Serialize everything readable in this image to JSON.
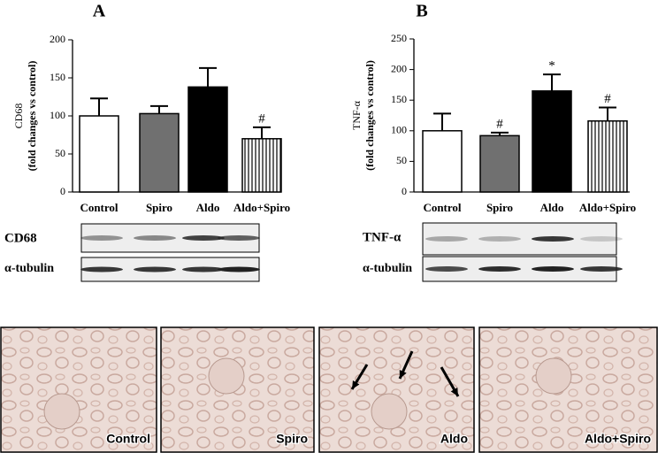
{
  "chart_data": [
    {
      "type": "bar",
      "panel": "A",
      "ylabel": [
        "CD68",
        "(fold changes vs control)"
      ],
      "categories": [
        "Control",
        "Spiro",
        "Aldo",
        "Aldo+Spiro"
      ],
      "values": [
        100,
        103,
        138,
        70
      ],
      "errors": [
        23,
        10,
        25,
        15
      ],
      "colors": [
        "#ffffff",
        "#707070",
        "#000000",
        "#ffffff"
      ],
      "hatch": [
        false,
        false,
        false,
        true
      ],
      "annotations": [
        null,
        null,
        null,
        "#"
      ],
      "ylim": [
        0,
        200
      ],
      "yticks": [
        0,
        50,
        100,
        150,
        200
      ]
    },
    {
      "type": "bar",
      "panel": "B",
      "ylabel": [
        "TNF-α",
        "(fold changes vs control)"
      ],
      "categories": [
        "Control",
        "Spiro",
        "Aldo",
        "Aldo+Spiro"
      ],
      "values": [
        100,
        92,
        165,
        116
      ],
      "errors": [
        28,
        5,
        27,
        22
      ],
      "colors": [
        "#ffffff",
        "#707070",
        "#000000",
        "#ffffff"
      ],
      "hatch": [
        false,
        false,
        false,
        true
      ],
      "annotations": [
        null,
        "#",
        "*",
        "#"
      ],
      "ylim": [
        0,
        250
      ],
      "yticks": [
        0,
        50,
        100,
        150,
        200,
        250
      ]
    }
  ],
  "blots": [
    {
      "rows": [
        "CD68",
        "α-tubulin"
      ]
    },
    {
      "rows": [
        "TNF-α",
        "α-tubulin"
      ]
    }
  ],
  "images": [
    "Control",
    "Spiro",
    "Aldo",
    "Aldo+Spiro"
  ]
}
